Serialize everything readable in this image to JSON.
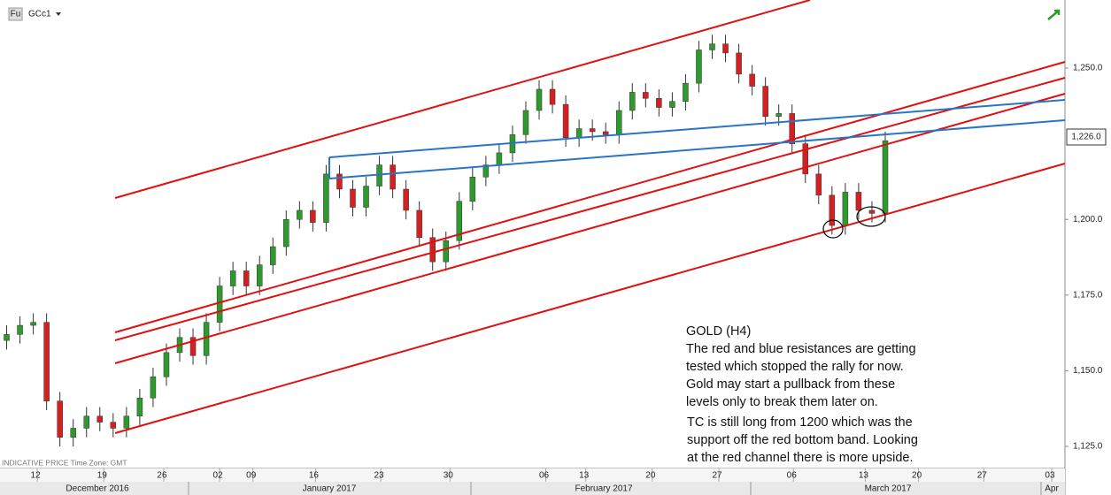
{
  "chart_data": {
    "type": "candlestick",
    "instrument_badge": "Fu",
    "instrument": "GCc1",
    "footer_note": "INDICATIVE PRICE   Time Zone: GMT",
    "last_price_label": "1,226.0",
    "up_color": "#2e9a2e",
    "down_color": "#d42020",
    "grid": false,
    "x": [
      0.5,
      1.5,
      2.5,
      3.5,
      4.5,
      5.5,
      6.5,
      7.5,
      8.5,
      9.5,
      10.5,
      11.5,
      12.5,
      13.5,
      14.5,
      15.5,
      16.5,
      17.5,
      18.5,
      19.5,
      20.5,
      21.5,
      22.5,
      23.5,
      24.5,
      25.5,
      26.5,
      27.5,
      28.5,
      29.5,
      30.5,
      31.5,
      32.5,
      33.5,
      34.5,
      35.5,
      36.5,
      37.5,
      38.5,
      39.5,
      40.5,
      41.5,
      42.5,
      43.5,
      44.5,
      45.5,
      46.5,
      47.5,
      48.5,
      49.5,
      50.5,
      51.5,
      52.5,
      53.5,
      54.5,
      55.5,
      56.5,
      57.5,
      58.5,
      59.5,
      60.5,
      61.5,
      62.5,
      63.5,
      64.5,
      65.5,
      66.5
    ],
    "open": [
      1160,
      1162,
      1165,
      1166,
      1140,
      1128,
      1131,
      1135,
      1133,
      1131,
      1135,
      1141,
      1148,
      1156,
      1161,
      1155,
      1166,
      1178,
      1183,
      1178,
      1185,
      1191,
      1200,
      1203,
      1199,
      1215,
      1210,
      1204,
      1211,
      1218,
      1210,
      1203,
      1194,
      1186,
      1193,
      1206,
      1214,
      1218,
      1222,
      1228,
      1236,
      1243,
      1238,
      1227,
      1230,
      1229,
      1228,
      1236,
      1242,
      1240,
      1237,
      1239,
      1245,
      1256,
      1258,
      1255,
      1248,
      1244,
      1234,
      1235,
      1225,
      1215,
      1208,
      1198,
      1209,
      1203,
      1202
    ],
    "high": [
      1165,
      1168,
      1169,
      1169,
      1143,
      1134,
      1138,
      1138,
      1136,
      1138,
      1144,
      1151,
      1159,
      1164,
      1164,
      1169,
      1181,
      1186,
      1186,
      1188,
      1194,
      1203,
      1206,
      1206,
      1218,
      1218,
      1213,
      1214,
      1221,
      1221,
      1213,
      1206,
      1197,
      1196,
      1209,
      1217,
      1221,
      1225,
      1231,
      1239,
      1246,
      1246,
      1241,
      1233,
      1233,
      1232,
      1239,
      1245,
      1245,
      1243,
      1242,
      1248,
      1259,
      1261,
      1261,
      1258,
      1251,
      1247,
      1238,
      1238,
      1228,
      1218,
      1211,
      1212,
      1212,
      1206,
      1229
    ],
    "low": [
      1157,
      1159,
      1162,
      1137,
      1125,
      1125,
      1128,
      1130,
      1128,
      1128,
      1132,
      1138,
      1145,
      1153,
      1152,
      1152,
      1163,
      1175,
      1175,
      1175,
      1182,
      1188,
      1197,
      1196,
      1196,
      1207,
      1201,
      1201,
      1208,
      1207,
      1200,
      1191,
      1183,
      1183,
      1190,
      1203,
      1211,
      1215,
      1219,
      1225,
      1233,
      1235,
      1224,
      1224,
      1226,
      1225,
      1225,
      1233,
      1237,
      1234,
      1234,
      1236,
      1242,
      1253,
      1252,
      1245,
      1241,
      1231,
      1231,
      1222,
      1212,
      1205,
      1195,
      1195,
      1200,
      1199,
      1199
    ],
    "close": [
      1162,
      1165,
      1166,
      1140,
      1128,
      1131,
      1135,
      1133,
      1131,
      1135,
      1141,
      1148,
      1156,
      1161,
      1155,
      1166,
      1178,
      1183,
      1178,
      1185,
      1191,
      1200,
      1203,
      1199,
      1215,
      1210,
      1204,
      1211,
      1218,
      1210,
      1203,
      1194,
      1186,
      1193,
      1206,
      1214,
      1218,
      1222,
      1228,
      1236,
      1243,
      1238,
      1227,
      1230,
      1229,
      1228,
      1236,
      1242,
      1240,
      1237,
      1239,
      1245,
      1256,
      1258,
      1255,
      1248,
      1244,
      1234,
      1235,
      1225,
      1215,
      1208,
      1198,
      1209,
      1203,
      1202,
      1226
    ],
    "xlim": [
      0,
      80
    ],
    "ylim": [
      1117.7,
      1272.5
    ],
    "yticks": [
      {
        "value": 1125,
        "label": "1,125.0"
      },
      {
        "value": 1150,
        "label": "1,150.0"
      },
      {
        "value": 1175,
        "label": "1,175.0"
      },
      {
        "value": 1200,
        "label": "1,200.0"
      },
      {
        "value": 1250,
        "label": "1,250.0"
      }
    ],
    "xticks": [
      {
        "value": 2.8,
        "label": "12"
      },
      {
        "value": 7.8,
        "label": "19"
      },
      {
        "value": 12.3,
        "label": "26"
      },
      {
        "value": 16.5,
        "label": "02"
      },
      {
        "value": 19,
        "label": "09"
      },
      {
        "value": 23.7,
        "label": "16"
      },
      {
        "value": 28.6,
        "label": "23"
      },
      {
        "value": 33.8,
        "label": "30"
      },
      {
        "value": 41,
        "label": "06"
      },
      {
        "value": 44,
        "label": "13"
      },
      {
        "value": 49,
        "label": "20"
      },
      {
        "value": 54,
        "label": "27"
      },
      {
        "value": 59.6,
        "label": "06"
      },
      {
        "value": 65,
        "label": "13"
      },
      {
        "value": 69,
        "label": "20"
      },
      {
        "value": 73.9,
        "label": "27"
      },
      {
        "value": 79,
        "label": "03"
      }
    ],
    "months": [
      "December 2016",
      "January 2017",
      "February 2017",
      "March 2017",
      "Apr"
    ],
    "annotation": [
      [
        "GOLD (H4)",
        "The red and blue resistances are getting",
        "tested which stopped the rally for now.",
        "Gold may start a pullback from these",
        "levels only to break them later on."
      ],
      [
        "TC is still long from 1200 which was the",
        "support off the red bottom band. Looking",
        "at the red channel there is more upside."
      ]
    ]
  }
}
